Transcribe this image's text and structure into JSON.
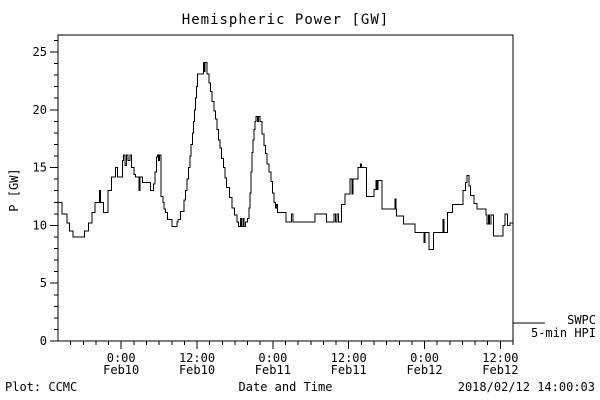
{
  "colors": {
    "background": "#ffffff",
    "line": "#000000",
    "text": "#000000"
  },
  "header": {
    "title": "Hemispheric Power [GW]"
  },
  "legend": {
    "series_label": "SWPC",
    "cadence_label": "5-min HPI"
  },
  "footer": {
    "left": "Plot: CCMC",
    "center": "Date and Time",
    "right": "2018/02/12 14:00:03"
  },
  "chart_data": {
    "type": "line",
    "step_interpolation": "post",
    "title": "Hemispheric Power [GW]",
    "xlabel": "Date and Time",
    "ylabel": "P [GW]",
    "grid": false,
    "legend_position": "right-outside",
    "x_unit": "hours across plotted window",
    "xlim": [
      0,
      72
    ],
    "ylim": [
      0,
      26.4
    ],
    "y_major_ticks": [
      0,
      5,
      10,
      15,
      20,
      25
    ],
    "y_minor_step": 1,
    "x_minor_step": 2,
    "x_major_ticks": [
      {
        "t": 10,
        "time": "0:00",
        "date": "Feb10"
      },
      {
        "t": 22,
        "time": "12:00",
        "date": "Feb10"
      },
      {
        "t": 34,
        "time": "0:00",
        "date": "Feb11"
      },
      {
        "t": 46,
        "time": "12:00",
        "date": "Feb11"
      },
      {
        "t": 58,
        "time": "0:00",
        "date": "Feb12"
      },
      {
        "t": 70,
        "time": "12:00",
        "date": "Feb12"
      }
    ],
    "series": [
      {
        "name": "SWPC 5-min HPI",
        "color": "#000000",
        "points": [
          [
            0,
            12.0
          ],
          [
            0.6,
            11.0
          ],
          [
            1.4,
            10.2
          ],
          [
            1.8,
            9.5
          ],
          [
            2.4,
            9.0
          ],
          [
            4.2,
            9.5
          ],
          [
            4.8,
            10.2
          ],
          [
            5.4,
            11.1
          ],
          [
            5.85,
            12.0
          ],
          [
            6.55,
            13.0
          ],
          [
            6.7,
            12.0
          ],
          [
            7.2,
            11.1
          ],
          [
            7.95,
            13.0
          ],
          [
            8.5,
            14.2
          ],
          [
            9.1,
            15.0
          ],
          [
            9.4,
            14.2
          ],
          [
            10.2,
            15.6
          ],
          [
            10.4,
            16.1
          ],
          [
            10.6,
            15.2
          ],
          [
            10.85,
            16.1
          ],
          [
            11.1,
            15.6
          ],
          [
            11.4,
            16.1
          ],
          [
            11.65,
            15.0
          ],
          [
            12.0,
            14.4
          ],
          [
            12.3,
            14.2
          ],
          [
            12.85,
            13.0
          ],
          [
            13.0,
            14.2
          ],
          [
            13.35,
            13.7
          ],
          [
            14.6,
            13.0
          ],
          [
            15.1,
            13.6
          ],
          [
            15.35,
            14.6
          ],
          [
            15.55,
            15.9
          ],
          [
            15.75,
            16.1
          ],
          [
            15.9,
            15.6
          ],
          [
            16.05,
            16.1
          ],
          [
            16.3,
            12.5
          ],
          [
            16.6,
            12.0
          ],
          [
            16.8,
            11.4
          ],
          [
            17.05,
            11.1
          ],
          [
            17.35,
            10.5
          ],
          [
            18.0,
            9.9
          ],
          [
            18.8,
            10.3
          ],
          [
            19.0,
            10.5
          ],
          [
            19.35,
            11.2
          ],
          [
            19.9,
            12.2
          ],
          [
            20.2,
            13.0
          ],
          [
            20.45,
            14.0
          ],
          [
            20.65,
            15.0
          ],
          [
            20.85,
            16.0
          ],
          [
            21.05,
            17.0
          ],
          [
            21.25,
            18.0
          ],
          [
            21.45,
            19.0
          ],
          [
            21.6,
            20.0
          ],
          [
            21.75,
            21.0
          ],
          [
            21.9,
            22.0
          ],
          [
            22.05,
            23.1
          ],
          [
            23.0,
            24.1
          ],
          [
            23.15,
            23.3
          ],
          [
            23.3,
            24.1
          ],
          [
            23.55,
            23.1
          ],
          [
            23.9,
            22.3
          ],
          [
            24.15,
            21.6
          ],
          [
            24.4,
            20.7
          ],
          [
            24.65,
            19.9
          ],
          [
            24.9,
            19.2
          ],
          [
            25.15,
            18.3
          ],
          [
            25.4,
            17.4
          ],
          [
            25.65,
            16.7
          ],
          [
            25.9,
            15.8
          ],
          [
            26.15,
            15.0
          ],
          [
            26.4,
            14.1
          ],
          [
            26.7,
            13.3
          ],
          [
            27.1,
            12.4
          ],
          [
            27.5,
            11.5
          ],
          [
            27.9,
            10.9
          ],
          [
            28.3,
            10.3
          ],
          [
            28.6,
            9.9
          ],
          [
            28.85,
            10.6
          ],
          [
            29.05,
            9.9
          ],
          [
            29.25,
            10.6
          ],
          [
            29.45,
            9.9
          ],
          [
            29.7,
            10.3
          ],
          [
            30.0,
            10.6
          ],
          [
            30.2,
            11.5
          ],
          [
            30.4,
            12.8
          ],
          [
            30.55,
            14.6
          ],
          [
            30.7,
            16.3
          ],
          [
            30.85,
            17.4
          ],
          [
            31.0,
            18.3
          ],
          [
            31.2,
            19.0
          ],
          [
            31.35,
            19.4
          ],
          [
            31.55,
            19.0
          ],
          [
            31.75,
            19.4
          ],
          [
            32.0,
            19.0
          ],
          [
            32.3,
            17.9
          ],
          [
            32.6,
            16.9
          ],
          [
            32.85,
            16.2
          ],
          [
            33.1,
            15.3
          ],
          [
            33.4,
            14.6
          ],
          [
            33.7,
            13.8
          ],
          [
            33.95,
            12.8
          ],
          [
            34.2,
            12.0
          ],
          [
            34.45,
            11.5
          ],
          [
            34.6,
            11.8
          ],
          [
            34.75,
            11.1
          ],
          [
            36.1,
            10.3
          ],
          [
            36.95,
            11.0
          ],
          [
            37.2,
            10.3
          ],
          [
            40.7,
            11.0
          ],
          [
            42.5,
            10.3
          ],
          [
            43.7,
            11.0
          ],
          [
            43.95,
            10.3
          ],
          [
            44.15,
            11.0
          ],
          [
            44.35,
            10.3
          ],
          [
            44.9,
            11.8
          ],
          [
            45.4,
            12.7
          ],
          [
            46.2,
            14.0
          ],
          [
            46.55,
            12.7
          ],
          [
            46.7,
            14.0
          ],
          [
            47.5,
            15.0
          ],
          [
            47.9,
            15.3
          ],
          [
            48.05,
            15.0
          ],
          [
            48.8,
            12.5
          ],
          [
            50.0,
            13.1
          ],
          [
            50.3,
            13.9
          ],
          [
            50.45,
            13.1
          ],
          [
            50.65,
            13.9
          ],
          [
            51.25,
            11.4
          ],
          [
            53.3,
            12.3
          ],
          [
            53.45,
            11.4
          ],
          [
            53.6,
            10.8
          ],
          [
            54.7,
            10.1
          ],
          [
            56.5,
            9.4
          ],
          [
            57.95,
            8.5
          ],
          [
            58.1,
            9.4
          ],
          [
            58.7,
            7.9
          ],
          [
            59.4,
            9.4
          ],
          [
            60.9,
            10.5
          ],
          [
            61.1,
            9.4
          ],
          [
            61.6,
            11.1
          ],
          [
            62.4,
            11.8
          ],
          [
            64.1,
            13.0
          ],
          [
            64.45,
            13.7
          ],
          [
            64.75,
            14.3
          ],
          [
            65.05,
            13.4
          ],
          [
            65.3,
            12.6
          ],
          [
            65.8,
            11.9
          ],
          [
            66.3,
            11.4
          ],
          [
            67.7,
            10.9
          ],
          [
            67.9,
            10.1
          ],
          [
            68.1,
            10.9
          ],
          [
            68.3,
            10.1
          ],
          [
            68.5,
            10.9
          ],
          [
            68.95,
            9.1
          ],
          [
            70.4,
            10.0
          ],
          [
            70.75,
            11.0
          ],
          [
            71.1,
            10.0
          ],
          [
            71.5,
            10.2
          ],
          [
            72,
            10.2
          ]
        ]
      }
    ]
  }
}
